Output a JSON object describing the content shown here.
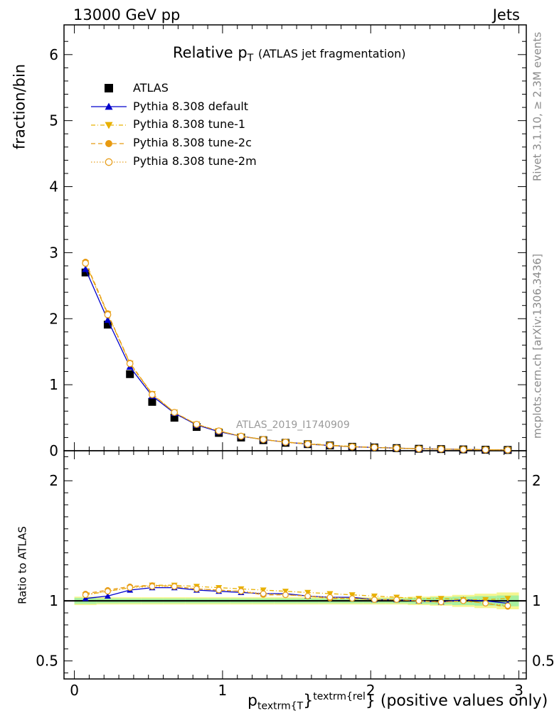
{
  "header": {
    "left": "13000 GeV pp",
    "right": "Jets"
  },
  "side_text": {
    "rivet": "Rivet 3.1.10, ≥ 2.3M events",
    "mcplots": "mcplots.cern.ch [arXiv:1306.3436]"
  },
  "chart_data": [
    {
      "type": "line",
      "title_main": "Relative p",
      "title_sub": "T",
      "title_rest": "(ATLAS jet fragmentation)",
      "ylabel": "fraction/bin",
      "watermark": "ATLAS_2019_I1740909",
      "xlim": [
        -0.07,
        3.05
      ],
      "ylim": [
        0,
        6.45
      ],
      "yticks": [
        "0",
        "1",
        "2",
        "3",
        "4",
        "5",
        "6"
      ],
      "legend_position": "top-left",
      "x": [
        0.075,
        0.225,
        0.375,
        0.525,
        0.675,
        0.825,
        0.975,
        1.125,
        1.275,
        1.425,
        1.575,
        1.725,
        1.875,
        2.025,
        2.175,
        2.325,
        2.475,
        2.625,
        2.775,
        2.925
      ],
      "series": [
        {
          "name": "ATLAS",
          "style": "data",
          "color": "#000000",
          "values": [
            2.7,
            1.91,
            1.16,
            0.74,
            0.5,
            0.36,
            0.27,
            0.2,
            0.16,
            0.12,
            0.1,
            0.08,
            0.06,
            0.05,
            0.04,
            0.03,
            0.025,
            0.02,
            0.015,
            0.012
          ]
        },
        {
          "name": "Pythia 8.308 default",
          "style": "solid-triangle",
          "color": "#0000cc",
          "values": [
            2.75,
            1.98,
            1.27,
            0.83,
            0.57,
            0.39,
            0.29,
            0.22,
            0.17,
            0.13,
            0.1,
            0.08,
            0.06,
            0.05,
            0.04,
            0.03,
            0.025,
            0.02,
            0.015,
            0.012
          ]
        },
        {
          "name": "Pythia 8.308 tune-1",
          "style": "dashdot-triangle-down",
          "color": "#e8b000",
          "values": [
            2.84,
            2.07,
            1.32,
            0.86,
            0.58,
            0.4,
            0.3,
            0.22,
            0.17,
            0.13,
            0.11,
            0.085,
            0.065,
            0.05,
            0.04,
            0.03,
            0.025,
            0.02,
            0.015,
            0.012
          ]
        },
        {
          "name": "Pythia 8.308 tune-2c",
          "style": "dashed-circle",
          "color": "#e89a10",
          "values": [
            2.86,
            2.08,
            1.33,
            0.86,
            0.58,
            0.4,
            0.3,
            0.22,
            0.17,
            0.13,
            0.1,
            0.08,
            0.06,
            0.05,
            0.04,
            0.03,
            0.025,
            0.02,
            0.015,
            0.012
          ]
        },
        {
          "name": "Pythia 8.308 tune-2m",
          "style": "dotted-open-circle",
          "color": "#e8a020",
          "values": [
            2.84,
            2.06,
            1.32,
            0.85,
            0.58,
            0.4,
            0.3,
            0.22,
            0.17,
            0.13,
            0.1,
            0.08,
            0.06,
            0.05,
            0.04,
            0.03,
            0.025,
            0.02,
            0.015,
            0.012
          ]
        }
      ]
    },
    {
      "type": "line",
      "ylabel": "Ratio to ATLAS",
      "xlabel_main": "p",
      "xlabel_sub": "textrm{T",
      "xlabel_sup": "textrm{rel",
      "xlabel_brace1": "}",
      "xlabel_brace2": "}",
      "xlabel_rest": "(positive values only)",
      "xlim": [
        -0.07,
        3.05
      ],
      "ylim": [
        0.35,
        2.25
      ],
      "xticks": [
        "0",
        "1",
        "2",
        "3"
      ],
      "yticks": [
        "0.5",
        "1",
        "2"
      ],
      "x": [
        0.075,
        0.225,
        0.375,
        0.525,
        0.675,
        0.825,
        0.975,
        1.125,
        1.275,
        1.425,
        1.575,
        1.725,
        1.875,
        2.025,
        2.175,
        2.325,
        2.475,
        2.625,
        2.775,
        2.925
      ],
      "band_inner": [
        0.025,
        0.02,
        0.02,
        0.02,
        0.02,
        0.02,
        0.02,
        0.02,
        0.02,
        0.02,
        0.02,
        0.02,
        0.02,
        0.02,
        0.02,
        0.025,
        0.03,
        0.035,
        0.04,
        0.045
      ],
      "band_outer": [
        0.035,
        0.03,
        0.03,
        0.03,
        0.03,
        0.03,
        0.03,
        0.03,
        0.03,
        0.03,
        0.03,
        0.03,
        0.03,
        0.03,
        0.03,
        0.035,
        0.04,
        0.05,
        0.06,
        0.07
      ],
      "series": [
        {
          "name": "Pythia 8.308 default",
          "color": "#0000cc",
          "values": [
            1.02,
            1.04,
            1.09,
            1.11,
            1.11,
            1.09,
            1.08,
            1.07,
            1.06,
            1.06,
            1.04,
            1.03,
            1.03,
            1.01,
            1.01,
            1.0,
            0.99,
            1.01,
            1.0,
            0.98
          ]
        },
        {
          "name": "Pythia 8.308 tune-1",
          "color": "#e8b000",
          "values": [
            1.05,
            1.08,
            1.11,
            1.13,
            1.13,
            1.12,
            1.11,
            1.1,
            1.09,
            1.08,
            1.07,
            1.06,
            1.05,
            1.04,
            1.03,
            1.02,
            1.02,
            1.01,
            1.01,
            1.02
          ]
        },
        {
          "name": "Pythia 8.308 tune-2c",
          "color": "#e89a10",
          "values": [
            1.06,
            1.09,
            1.12,
            1.13,
            1.12,
            1.1,
            1.09,
            1.08,
            1.05,
            1.05,
            1.04,
            1.02,
            1.02,
            1.01,
            1.01,
            1.0,
            0.99,
            1.0,
            0.98,
            0.95
          ]
        },
        {
          "name": "Pythia 8.308 tune-2m",
          "color": "#e8a020",
          "values": [
            1.05,
            1.08,
            1.11,
            1.12,
            1.12,
            1.1,
            1.09,
            1.08,
            1.06,
            1.05,
            1.04,
            1.03,
            1.02,
            1.01,
            1.01,
            1.0,
            0.99,
            1.0,
            0.98,
            0.96
          ]
        }
      ]
    }
  ]
}
